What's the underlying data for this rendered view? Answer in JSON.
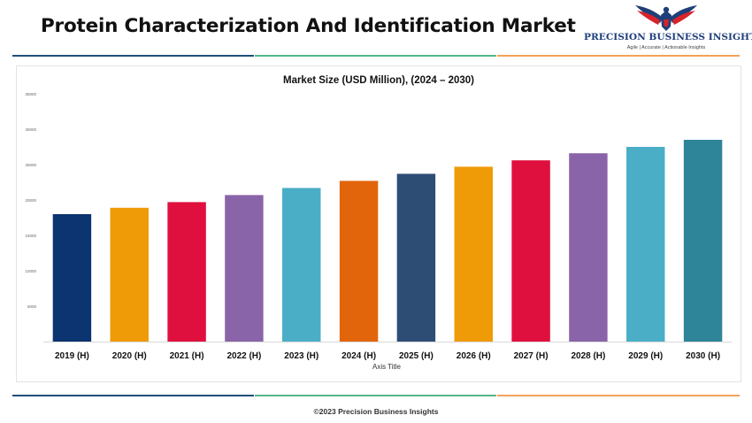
{
  "header": {
    "title": "Protein Characterization And Identification Market"
  },
  "logo": {
    "name": "PRECISION BUSINESS INSIGHTS",
    "tagline": "Agile | Accurate | Actionable Insights",
    "colors": {
      "navy": "#1f3f7a",
      "red": "#d8232a"
    }
  },
  "rule_colors": [
    "#1f4e79",
    "#52b788",
    "#f4a259"
  ],
  "footer": {
    "text": "©2023 Precision Business Insights"
  },
  "chart_data": {
    "type": "bar",
    "title": "Market Size (USD Million), (2024 – 2030)",
    "xlabel": "Axis Title",
    "ylabel": "",
    "categories": [
      "2019 (H)",
      "2020 (H)",
      "2021 (H)",
      "2022 (H)",
      "2023 (H)",
      "2024 (H)",
      "2025 (H)",
      "2026 (H)",
      "2027 (H)",
      "2028 (H)",
      "2029 (H)",
      "2030 (H)"
    ],
    "values": [
      18000,
      18900,
      19700,
      20700,
      21700,
      22700,
      23700,
      24700,
      25600,
      26600,
      27500,
      28500
    ],
    "colors": [
      "#0b3470",
      "#ef9a07",
      "#e0103e",
      "#8a64a8",
      "#4aaec7",
      "#e3650b",
      "#2d4d75",
      "#ef9a07",
      "#e0103e",
      "#8a64a8",
      "#4aaec7",
      "#2e8499"
    ],
    "y_ticks": [
      0,
      5000,
      10000,
      15000,
      20000,
      25000,
      30000,
      35000
    ],
    "y_tick_labels": [
      "",
      "5000",
      "10000",
      "15000",
      "20000",
      "25000",
      "30000",
      "35000"
    ],
    "ylim": [
      0,
      35000
    ],
    "grid": false,
    "legend": "none"
  }
}
